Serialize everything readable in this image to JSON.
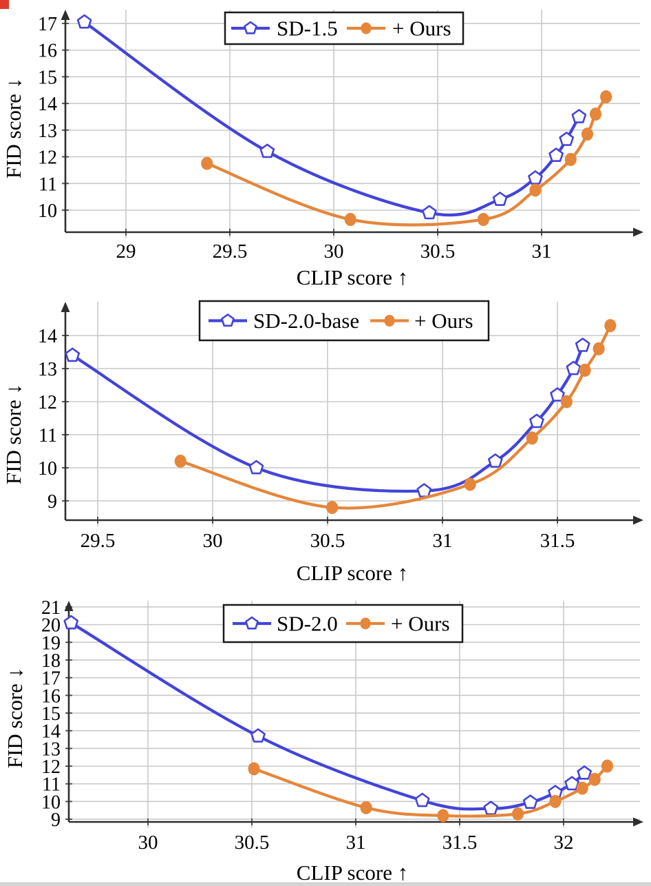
{
  "colors": {
    "baseline_series": "#4444d9",
    "ours_series": "#e5863b",
    "grid": "#c9c9c9",
    "axis": "#2e2e2e",
    "tick": "#555555",
    "text": "#000000",
    "legend_border": "#1a1a1a",
    "legend_bg": "#ffffff",
    "corner_artifact": "#e23b2c",
    "bottom_strip": "#d6d6d6"
  },
  "chart_data": [
    {
      "type": "line",
      "title": "",
      "xlabel": "CLIP score ↑",
      "ylabel": "FID score ↓",
      "x_ticks": [
        29,
        29.5,
        30,
        30.5,
        31
      ],
      "y_ticks": [
        10,
        11,
        12,
        13,
        14,
        15,
        16,
        17
      ],
      "xlim": [
        28.7,
        31.5
      ],
      "ylim": [
        9.2,
        17.5
      ],
      "grid": true,
      "legend_position": "top-center",
      "series": [
        {
          "name": "SD-1.5",
          "color_key": "baseline_series",
          "marker": "pentagon",
          "points": [
            [
              28.8,
              17.05
            ],
            [
              29.68,
              12.2
            ],
            [
              30.46,
              9.9
            ],
            [
              30.8,
              10.4
            ],
            [
              30.97,
              11.2
            ],
            [
              31.07,
              12.05
            ],
            [
              31.12,
              12.65
            ],
            [
              31.18,
              13.5
            ]
          ]
        },
        {
          "name": "+ Ours",
          "color_key": "ours_series",
          "marker": "circle",
          "points": [
            [
              29.39,
              11.75
            ],
            [
              30.08,
              9.65
            ],
            [
              30.72,
              9.65
            ],
            [
              30.97,
              10.75
            ],
            [
              31.14,
              11.9
            ],
            [
              31.22,
              12.85
            ],
            [
              31.26,
              13.6
            ],
            [
              31.31,
              14.25
            ]
          ]
        }
      ]
    },
    {
      "type": "line",
      "title": "",
      "xlabel": "CLIP score ↑",
      "ylabel": "FID score ↓",
      "x_ticks": [
        29.5,
        30,
        30.5,
        31,
        31.5
      ],
      "y_ticks": [
        9,
        10,
        11,
        12,
        13,
        14
      ],
      "xlim": [
        29.36,
        31.87
      ],
      "ylim": [
        8.4,
        14.9
      ],
      "grid": true,
      "legend_position": "top-center",
      "series": [
        {
          "name": "SD-2.0-base",
          "color_key": "baseline_series",
          "marker": "pentagon",
          "points": [
            [
              29.39,
              13.4
            ],
            [
              30.19,
              10.0
            ],
            [
              30.92,
              9.3
            ],
            [
              31.23,
              10.2
            ],
            [
              31.41,
              11.4
            ],
            [
              31.5,
              12.2
            ],
            [
              31.57,
              13.0
            ],
            [
              31.61,
              13.7
            ]
          ]
        },
        {
          "name": "+ Ours",
          "color_key": "ours_series",
          "marker": "circle",
          "points": [
            [
              29.86,
              10.2
            ],
            [
              30.52,
              8.8
            ],
            [
              31.12,
              9.5
            ],
            [
              31.39,
              10.9
            ],
            [
              31.54,
              12.0
            ],
            [
              31.62,
              12.95
            ],
            [
              31.68,
              13.6
            ],
            [
              31.73,
              14.3
            ]
          ]
        }
      ]
    },
    {
      "type": "line",
      "title": "",
      "xlabel": "CLIP score ↑",
      "ylabel": "FID score ↓",
      "x_ticks": [
        30,
        30.5,
        31,
        31.5,
        32
      ],
      "y_ticks": [
        9,
        10,
        11,
        12,
        13,
        14,
        15,
        16,
        17,
        18,
        19,
        20,
        21
      ],
      "xlim": [
        29.62,
        32.4
      ],
      "ylim": [
        8.85,
        21.4
      ],
      "grid": true,
      "legend_position": "top-center",
      "series": [
        {
          "name": "SD-2.0",
          "color_key": "baseline_series",
          "marker": "pentagon",
          "points": [
            [
              29.63,
              20.1
            ],
            [
              30.53,
              13.7
            ],
            [
              31.32,
              10.05
            ],
            [
              31.65,
              9.6
            ],
            [
              31.84,
              9.95
            ],
            [
              31.96,
              10.5
            ],
            [
              32.04,
              11.0
            ],
            [
              32.1,
              11.6
            ]
          ]
        },
        {
          "name": "+ Ours",
          "color_key": "ours_series",
          "marker": "circle",
          "points": [
            [
              30.51,
              11.85
            ],
            [
              31.05,
              9.65
            ],
            [
              31.42,
              9.2
            ],
            [
              31.78,
              9.3
            ],
            [
              31.96,
              10.0
            ],
            [
              32.09,
              10.75
            ],
            [
              32.15,
              11.25
            ],
            [
              32.21,
              12.0
            ]
          ]
        }
      ]
    }
  ]
}
